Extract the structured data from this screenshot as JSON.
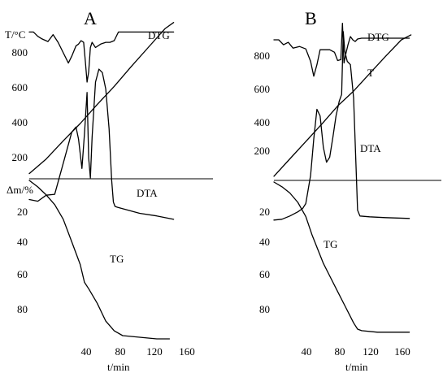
{
  "figure": {
    "accent_color": "#000000",
    "background_color": "#ffffff"
  },
  "chart_data": [
    {
      "type": "line",
      "panel_label": "A",
      "t_axis": {
        "label": "t/min",
        "ticks": [
          "40",
          "80",
          "120",
          "160"
        ],
        "range": [
          0,
          175
        ]
      },
      "temperature_axis": {
        "label": "T/°C",
        "ticks": [
          "200",
          "400",
          "600",
          "800"
        ],
        "range": [
          0,
          900
        ]
      },
      "mass_axis": {
        "label": "Δm/%",
        "ticks": [
          "20",
          "40",
          "60",
          "80"
        ],
        "range": [
          0,
          100
        ]
      },
      "annotations": [
        "DTG",
        "DTA",
        "TG"
      ],
      "series": [
        {
          "name": "DTG",
          "curve_labels_key": "DTG",
          "axis": "temperature_axis",
          "t": [
            0,
            5,
            10,
            15,
            22,
            28,
            34,
            40,
            46,
            50,
            55,
            58,
            61,
            64,
            66,
            68,
            70,
            72,
            74,
            78,
            84,
            90,
            95,
            100,
            105,
            115,
            130,
            150,
            170
          ],
          "y": [
            850,
            850,
            825,
            810,
            795,
            835,
            790,
            730,
            670,
            710,
            770,
            780,
            800,
            790,
            680,
            560,
            620,
            760,
            790,
            760,
            780,
            790,
            790,
            800,
            850,
            850,
            850,
            850,
            850
          ]
        },
        {
          "name": "T",
          "axis": "temperature_axis",
          "t": [
            0,
            20,
            40,
            60,
            80,
            100,
            120,
            140,
            160,
            170
          ],
          "y": [
            30,
            115,
            220,
            320,
            430,
            535,
            650,
            760,
            870,
            905
          ]
        },
        {
          "name": "DTA",
          "axis": "temperature_axis",
          "t": [
            0,
            10,
            20,
            30,
            40,
            50,
            55,
            58,
            62,
            65,
            68,
            70,
            72,
            74,
            78,
            82,
            86,
            90,
            94,
            97,
            99,
            101,
            104,
            115,
            130,
            150,
            170
          ],
          "y": [
            -120,
            -130,
            -95,
            -90,
            90,
            270,
            300,
            230,
            60,
            260,
            500,
            120,
            5,
            240,
            560,
            635,
            615,
            520,
            290,
            -10,
            -135,
            -160,
            -165,
            -180,
            -200,
            -215,
            -235
          ]
        },
        {
          "name": "TG",
          "axis": "mass_axis",
          "t": [
            0,
            10,
            20,
            30,
            40,
            50,
            60,
            65,
            70,
            80,
            90,
            100,
            110,
            130,
            150,
            165
          ],
          "y": [
            0,
            4,
            9,
            15,
            24,
            38,
            52,
            63,
            67,
            76,
            87,
            93,
            96,
            97,
            98,
            98
          ]
        }
      ]
    },
    {
      "type": "line",
      "panel_label": "B",
      "t_axis": {
        "label": "t/min",
        "ticks": [
          "40",
          "80",
          "120",
          "160"
        ],
        "range": [
          0,
          175
        ]
      },
      "temperature_axis": {
        "label": "",
        "ticks": [
          "200",
          "400",
          "600",
          "800"
        ],
        "range": [
          0,
          900
        ]
      },
      "mass_axis": {
        "label": "",
        "ticks": [
          "20",
          "40",
          "60",
          "80"
        ],
        "range": [
          0,
          100
        ]
      },
      "annotations": [
        "DTG",
        "T",
        "DTA",
        "TG"
      ],
      "series": [
        {
          "name": "DTG",
          "axis": "temperature_axis",
          "t": [
            0,
            6,
            12,
            18,
            24,
            32,
            40,
            46,
            50,
            54,
            58,
            64,
            70,
            76,
            80,
            84,
            86,
            88,
            90,
            93,
            96,
            99,
            102,
            105,
            110,
            130,
            150,
            170
          ],
          "y": [
            850,
            850,
            820,
            835,
            800,
            810,
            795,
            720,
            630,
            700,
            790,
            790,
            790,
            775,
            725,
            730,
            950,
            710,
            760,
            820,
            870,
            850,
            840,
            855,
            860,
            860,
            860,
            860
          ]
        },
        {
          "name": "T",
          "axis": "temperature_axis",
          "t": [
            0,
            20,
            40,
            60,
            80,
            100,
            120,
            140,
            160,
            172
          ],
          "y": [
            25,
            130,
            235,
            340,
            450,
            540,
            645,
            750,
            850,
            880
          ]
        },
        {
          "name": "DTA",
          "axis": "temperature_axis",
          "t": [
            0,
            10,
            20,
            30,
            36,
            40,
            46,
            50,
            54,
            58,
            62,
            66,
            70,
            74,
            78,
            82,
            85,
            87,
            89,
            92,
            96,
            100,
            103,
            105,
            108,
            120,
            140,
            170
          ],
          "y": [
            -240,
            -235,
            -215,
            -190,
            -170,
            -140,
            30,
            250,
            430,
            390,
            200,
            110,
            140,
            260,
            390,
            480,
            520,
            900,
            780,
            720,
            700,
            500,
            100,
            -180,
            -215,
            -220,
            -225,
            -230
          ]
        },
        {
          "name": "TG",
          "axis": "mass_axis",
          "t": [
            0,
            10,
            20,
            30,
            40,
            48,
            55,
            62,
            70,
            80,
            90,
            100,
            105,
            110,
            130,
            150,
            170
          ],
          "y": [
            0,
            3,
            7,
            13,
            22,
            34,
            43,
            52,
            60,
            70,
            80,
            90,
            94,
            95,
            96,
            96,
            96
          ]
        }
      ]
    }
  ]
}
